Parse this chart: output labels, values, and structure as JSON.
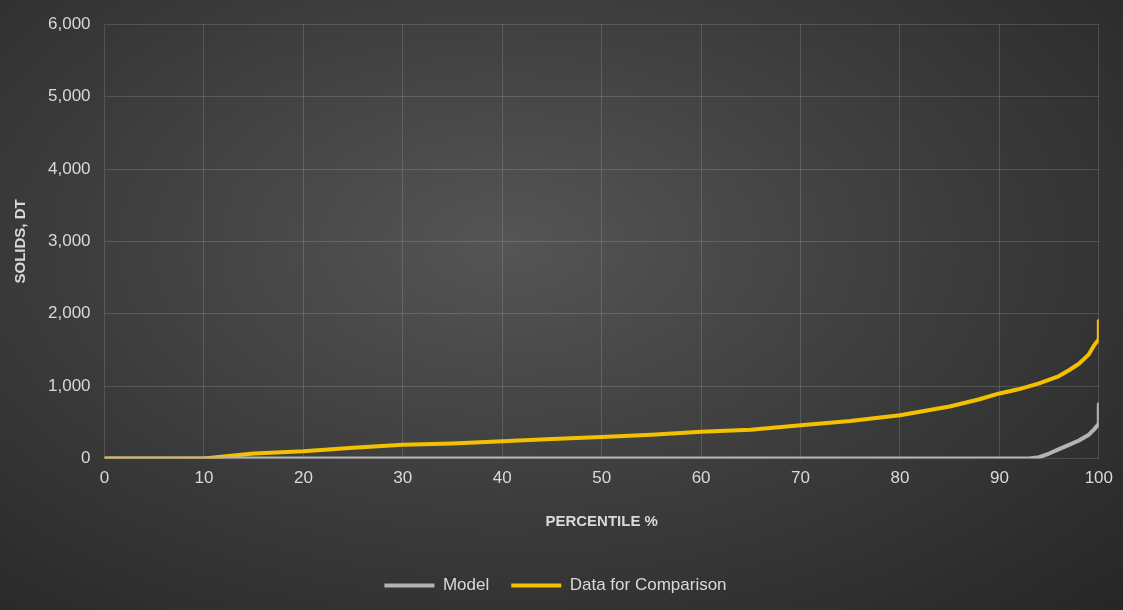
{
  "chart_data": {
    "type": "line",
    "xlabel": "PERCENTILE %",
    "ylabel": "SOLIDS, DT",
    "xlim": [
      0,
      100
    ],
    "xticks": [
      0,
      10,
      20,
      30,
      40,
      50,
      60,
      70,
      80,
      90,
      100
    ],
    "ylim": [
      0,
      6000
    ],
    "yticks": [
      {
        "value": 0,
        "label": "0"
      },
      {
        "value": 1000,
        "label": "1,000"
      },
      {
        "value": 2000,
        "label": "2,000"
      },
      {
        "value": 3000,
        "label": "3,000"
      },
      {
        "value": 4000,
        "label": "4,000"
      },
      {
        "value": 5000,
        "label": "5,000"
      },
      {
        "value": 6000,
        "label": "6,000"
      }
    ],
    "grid": true,
    "legend": "bottom",
    "marker": "none",
    "line_style": "solid",
    "series": [
      {
        "name": "Model",
        "color": "#b4b4b4",
        "x": [
          0,
          10,
          20,
          30,
          40,
          50,
          60,
          70,
          80,
          90,
          93,
          94,
          95,
          96,
          97,
          98,
          99,
          99.5,
          100,
          100
        ],
        "values": [
          0,
          0,
          0,
          0,
          0,
          0,
          0,
          0,
          0,
          0,
          0,
          20,
          70,
          130,
          190,
          250,
          330,
          400,
          480,
          750
        ]
      },
      {
        "name": "Data for Comparison",
        "color": "#f5c000",
        "x": [
          0,
          5,
          10,
          12,
          15,
          20,
          25,
          30,
          35,
          40,
          45,
          50,
          55,
          60,
          65,
          70,
          75,
          80,
          85,
          88,
          90,
          92,
          94,
          96,
          97,
          98,
          99,
          99.5,
          100,
          100
        ],
        "values": [
          0,
          0,
          0,
          30,
          70,
          100,
          150,
          190,
          210,
          240,
          270,
          300,
          330,
          370,
          400,
          460,
          520,
          600,
          720,
          820,
          900,
          960,
          1040,
          1140,
          1220,
          1310,
          1440,
          1560,
          1650,
          1900
        ]
      }
    ]
  }
}
